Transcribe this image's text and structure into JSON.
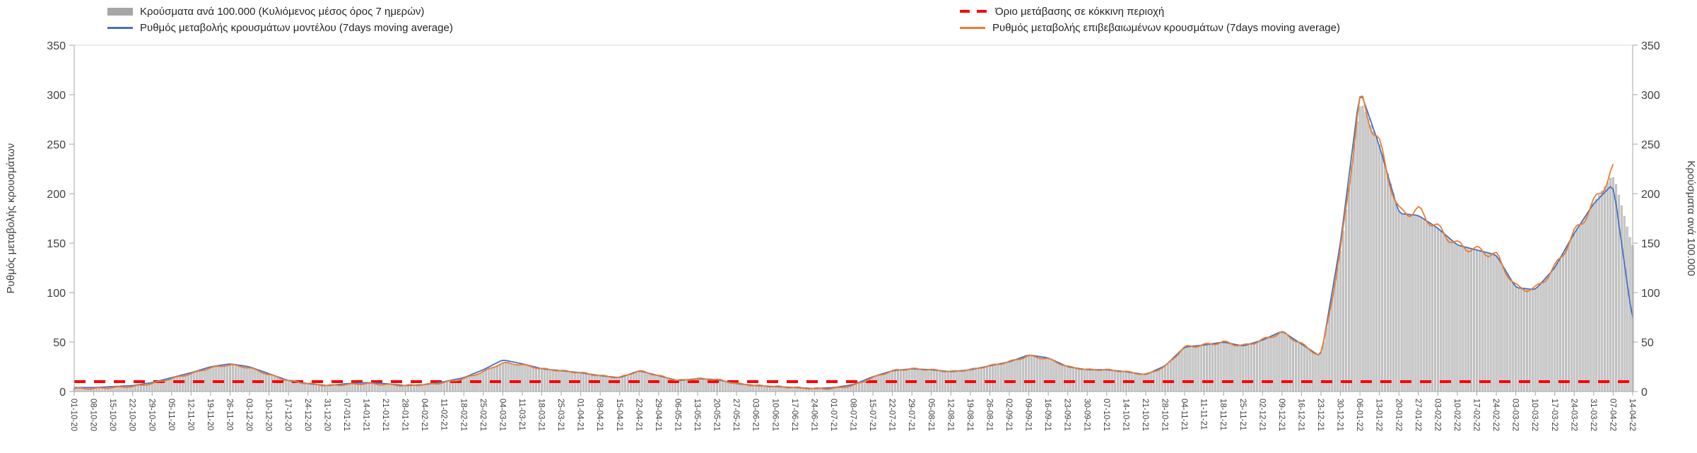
{
  "legend": {
    "bars_label": "Κρούσματα ανά 100.000 (Κυλιόμενος μέσος όρος 7 ημερών)",
    "threshold_label": "Όριο μετάβασης σε κόκκινη περιοχή",
    "model_label": "Ρυθμός μεταβολής κρουσμάτων μοντέλου (7days moving average)",
    "confirmed_label": "Ρυθμός μεταβολής επιβεβαιωμένων κρουσμάτων (7days moving average)"
  },
  "axes": {
    "left_title": "Ρυθμός μεταβολής κρουσμάτων",
    "right_title": "Κρούσματα ανά 100.000",
    "y_ticks": [
      0,
      50,
      100,
      150,
      200,
      250,
      300,
      350
    ]
  },
  "colors": {
    "bar_fill": "#cccccc",
    "bar_stroke": "#999999",
    "bar_legend": "#a6a6a6",
    "threshold": "#ff0000",
    "model": "#4472c4",
    "confirmed": "#ed7d31",
    "axis": "#a6a6a6",
    "plot_border": "#d9d9d9",
    "text": "#3f3f3f"
  },
  "chart_data": {
    "type": "bar",
    "subtype": "bar+line combo, weekly x labels, daily bars",
    "ylim": [
      0,
      350
    ],
    "grid": false,
    "legend_position": "top",
    "threshold": {
      "label": "Όριο μετάβασης σε κόκκινη περιοχή",
      "value": 10
    },
    "categories": [
      "01-10-20",
      "08-10-20",
      "15-10-20",
      "22-10-20",
      "29-10-20",
      "05-11-20",
      "12-11-20",
      "19-11-20",
      "26-11-20",
      "03-12-20",
      "10-12-20",
      "17-12-20",
      "24-12-20",
      "31-12-20",
      "07-01-21",
      "14-01-21",
      "21-01-21",
      "28-01-21",
      "04-02-21",
      "11-02-21",
      "18-02-21",
      "25-02-21",
      "04-03-21",
      "11-03-21",
      "18-03-21",
      "25-03-21",
      "01-04-21",
      "08-04-21",
      "15-04-21",
      "22-04-21",
      "29-04-21",
      "06-05-21",
      "13-05-21",
      "20-05-21",
      "27-05-21",
      "03-06-21",
      "10-06-21",
      "17-06-21",
      "24-06-21",
      "01-07-21",
      "08-07-21",
      "15-07-21",
      "22-07-21",
      "29-07-21",
      "05-08-21",
      "12-08-21",
      "19-08-21",
      "26-08-21",
      "02-09-21",
      "09-09-21",
      "16-09-21",
      "23-09-21",
      "30-09-21",
      "07-10-21",
      "14-10-21",
      "21-10-21",
      "28-10-21",
      "04-11-21",
      "11-11-21",
      "18-11-21",
      "25-11-21",
      "02-12-21",
      "09-12-21",
      "16-12-21",
      "23-12-21",
      "30-12-21",
      "06-01-22",
      "13-01-22",
      "20-01-22",
      "27-01-22",
      "03-02-22",
      "10-02-22",
      "17-02-22",
      "24-02-22",
      "03-03-22",
      "10-03-22",
      "17-03-22",
      "24-03-22",
      "31-03-22",
      "07-04-22",
      "14-04-22"
    ],
    "series": [
      {
        "name": "Κρούσματα ανά 100.000 (Κυλιόμενος μέσος όρος 7 ημερών)",
        "type": "bar",
        "axis": "right",
        "color": "#cccccc",
        "values": [
          3,
          3,
          4,
          5,
          8,
          13,
          18,
          24,
          27,
          24,
          17,
          11,
          8,
          6,
          7,
          8,
          7,
          6,
          7,
          9,
          13,
          20,
          29,
          27,
          23,
          21,
          19,
          16,
          14,
          21,
          16,
          11,
          13,
          12,
          8,
          6,
          5,
          4,
          3,
          3,
          6,
          14,
          21,
          23,
          22,
          20,
          22,
          26,
          30,
          36,
          33,
          25,
          22,
          22,
          20,
          17,
          25,
          45,
          47,
          50,
          46,
          52,
          60,
          48,
          35,
          140,
          295,
          250,
          180,
          178,
          165,
          148,
          143,
          138,
          105,
          103,
          125,
          160,
          190,
          220,
          145
        ]
      },
      {
        "name": "Ρυθμός μεταβολής κρουσμάτων μοντέλου (7days moving average)",
        "type": "line",
        "axis": "left",
        "style": "smooth",
        "color": "#4472c4",
        "values": [
          4,
          4,
          5,
          6,
          9,
          14,
          19,
          25,
          28,
          25,
          18,
          11,
          8,
          6,
          8,
          9,
          8,
          6,
          7,
          10,
          14,
          22,
          32,
          28,
          23,
          21,
          19,
          16,
          14,
          21,
          16,
          11,
          13,
          12,
          8,
          6,
          5,
          4,
          3,
          4,
          7,
          15,
          21,
          23,
          22,
          20,
          22,
          26,
          30,
          37,
          34,
          25,
          22,
          22,
          20,
          17,
          26,
          45,
          47,
          50,
          46,
          52,
          61,
          48,
          35,
          150,
          305,
          248,
          180,
          178,
          165,
          148,
          143,
          138,
          105,
          103,
          125,
          160,
          190,
          210,
          70
        ]
      },
      {
        "name": "Ρυθμός μεταβολής επιβεβαιωμένων κρουσμάτων (7days moving average)",
        "type": "line",
        "axis": "left",
        "style": "jagged",
        "color": "#ed7d31",
        "values": [
          3,
          3,
          4,
          5,
          8,
          13,
          18,
          24,
          27,
          24,
          17,
          11,
          8,
          6,
          7,
          8,
          7,
          6,
          7,
          9,
          13,
          20,
          29,
          27,
          23,
          21,
          19,
          16,
          14,
          21,
          16,
          11,
          13,
          12,
          8,
          6,
          5,
          4,
          3,
          3,
          6,
          14,
          21,
          23,
          22,
          20,
          22,
          26,
          30,
          36,
          33,
          25,
          22,
          22,
          20,
          17,
          25,
          45,
          47,
          50,
          46,
          52,
          60,
          48,
          35,
          140,
          298,
          250,
          180,
          183,
          165,
          148,
          143,
          138,
          105,
          103,
          125,
          160,
          190,
          225,
          null
        ]
      }
    ]
  }
}
